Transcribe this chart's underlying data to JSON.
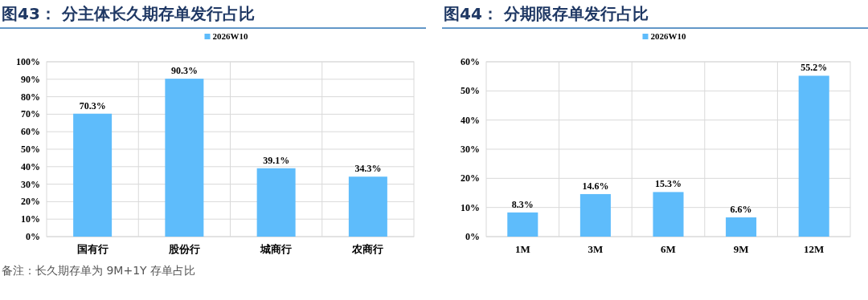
{
  "chart_data": [
    {
      "type": "bar",
      "title": "图43：  分主体长久期存单发行占比",
      "categories": [
        "国有行",
        "股份行",
        "城商行",
        "农商行"
      ],
      "series": [
        {
          "name": "2026W10",
          "color": "#5ebcfb",
          "values": [
            70.3,
            90.3,
            39.1,
            34.3
          ],
          "value_labels": [
            "70.3%",
            "90.3%",
            "39.1%",
            "34.3%"
          ]
        }
      ],
      "ylim": [
        0,
        100
      ],
      "yticks": [
        {
          "value": 0,
          "label": "0%"
        },
        {
          "value": 10,
          "label": "10%"
        },
        {
          "value": 20,
          "label": "20%"
        },
        {
          "value": 30,
          "label": "30%"
        },
        {
          "value": 40,
          "label": "40%"
        },
        {
          "value": 50,
          "label": "50%"
        },
        {
          "value": 60,
          "label": "60%"
        },
        {
          "value": 70,
          "label": "70%"
        },
        {
          "value": 80,
          "label": "80%"
        },
        {
          "value": 90,
          "label": "90%"
        },
        {
          "value": 100,
          "label": "100%"
        }
      ],
      "grid": true,
      "legend": "top",
      "annotations": [
        "备注：长久期存单为 9M+1Y 存单占比"
      ]
    },
    {
      "type": "bar",
      "title": "图44：  分期限存单发行占比",
      "categories": [
        "1M",
        "3M",
        "6M",
        "9M",
        "12M"
      ],
      "series": [
        {
          "name": "2026W10",
          "color": "#5ebcfb",
          "values": [
            8.3,
            14.6,
            15.3,
            6.6,
            55.2
          ],
          "value_labels": [
            "8.3%",
            "14.6%",
            "15.3%",
            "6.6%",
            "55.2%"
          ]
        }
      ],
      "ylim": [
        0,
        60
      ],
      "yticks": [
        {
          "value": 0,
          "label": "0%"
        },
        {
          "value": 10,
          "label": "10%"
        },
        {
          "value": 20,
          "label": "20%"
        },
        {
          "value": 30,
          "label": "30%"
        },
        {
          "value": 40,
          "label": "40%"
        },
        {
          "value": 50,
          "label": "50%"
        },
        {
          "value": 60,
          "label": "60%"
        }
      ],
      "grid": true,
      "legend": "top"
    }
  ]
}
